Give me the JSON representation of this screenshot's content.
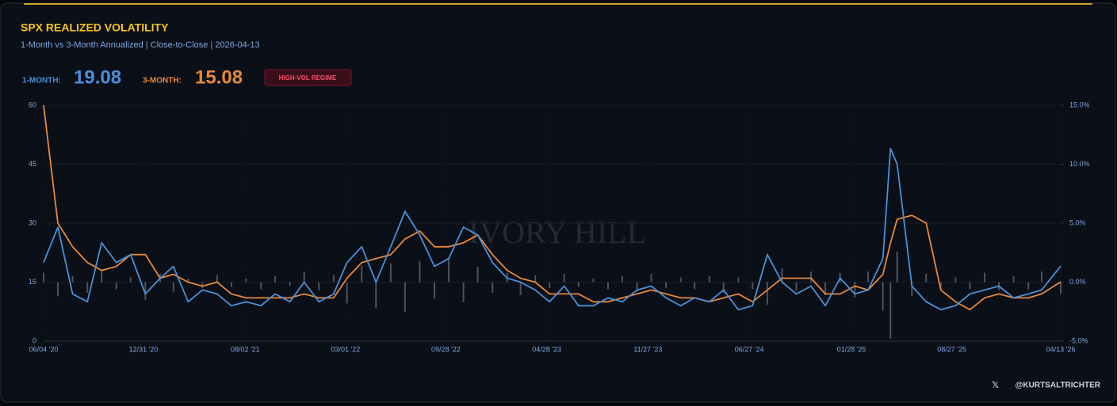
{
  "chart_data": {
    "type": "line",
    "title": "SPX REALIZED VOLATILITY",
    "subtitle": "1-Month vs 3-Month Annualized | Close-to-Close | 2026-04-13",
    "readouts": [
      {
        "label": "1-MONTH:",
        "value": 19.08,
        "color": "#4a90d9"
      },
      {
        "label": "3-MONTH:",
        "value": 15.08,
        "color": "#e8883a"
      }
    ],
    "badge": "HIGH-VOL REGIME",
    "watermark": "IVORY HILL",
    "handle": "@KURTSALTRICHTER",
    "x": [
      "2020-06-04",
      "2020-07-04",
      "2020-08-04",
      "2020-09-04",
      "2020-10-04",
      "2020-11-04",
      "2020-12-04",
      "2021-01-04",
      "2021-02-04",
      "2021-03-04",
      "2021-04-04",
      "2021-05-04",
      "2021-06-04",
      "2021-07-04",
      "2021-08-04",
      "2021-09-04",
      "2021-10-04",
      "2021-11-04",
      "2021-12-04",
      "2022-01-04",
      "2022-02-04",
      "2022-03-04",
      "2022-04-04",
      "2022-05-04",
      "2022-06-04",
      "2022-07-04",
      "2022-08-04",
      "2022-09-04",
      "2022-10-04",
      "2022-11-04",
      "2022-12-04",
      "2023-01-04",
      "2023-02-04",
      "2023-03-04",
      "2023-04-04",
      "2023-05-04",
      "2023-06-04",
      "2023-07-04",
      "2023-08-04",
      "2023-09-04",
      "2023-10-04",
      "2023-11-04",
      "2023-12-04",
      "2024-01-04",
      "2024-02-04",
      "2024-03-04",
      "2024-04-04",
      "2024-05-04",
      "2024-06-04",
      "2024-07-04",
      "2024-08-04",
      "2024-09-04",
      "2024-10-04",
      "2024-11-04",
      "2024-12-04",
      "2025-01-04",
      "2025-02-04",
      "2025-03-04",
      "2025-04-04",
      "2025-04-20",
      "2025-05-04",
      "2025-06-04",
      "2025-07-04",
      "2025-08-04",
      "2025-09-04",
      "2025-10-04",
      "2025-11-04",
      "2025-12-04",
      "2026-01-04",
      "2026-02-04",
      "2026-03-04",
      "2026-04-13"
    ],
    "series": [
      {
        "color": "#4a90d9",
        "values": [
          20,
          29,
          12,
          10,
          25,
          20,
          22,
          12,
          16,
          19,
          10,
          13,
          12,
          9,
          10,
          9,
          12,
          10,
          15,
          10,
          12,
          20,
          24,
          15,
          24,
          33,
          27,
          19,
          21,
          29,
          27,
          20,
          16,
          15,
          13,
          10,
          14,
          9,
          9,
          11,
          10,
          13,
          14,
          11,
          9,
          11,
          10,
          13,
          8,
          9,
          22,
          15,
          12,
          14,
          9,
          16,
          12,
          13,
          21,
          49,
          45,
          14,
          10,
          8,
          9,
          12,
          13,
          14,
          11,
          12,
          13,
          19.08
        ]
      },
      {
        "color": "#e8883a",
        "values": [
          60,
          30,
          24,
          20,
          18,
          19,
          22,
          22,
          16,
          17,
          15,
          14,
          15,
          12,
          11,
          11,
          11,
          11,
          12,
          11,
          11,
          16,
          20,
          21,
          22,
          26,
          28,
          24,
          24,
          25,
          27,
          22,
          18,
          16,
          15,
          12,
          12,
          12,
          10,
          10,
          11,
          12,
          13,
          12,
          11,
          11,
          10,
          11,
          12,
          10,
          13,
          16,
          16,
          16,
          12,
          12,
          14,
          13,
          17,
          25,
          31,
          32,
          30,
          13,
          10,
          8,
          11,
          12,
          11,
          11,
          12,
          15.08
        ]
      }
    ],
    "bars": {
      "axis": "y2",
      "color": "#6b6f78",
      "values": [
        0.8,
        -1.2,
        0.5,
        -0.9,
        1.1,
        -0.6,
        0.4,
        -1.5,
        0.7,
        -0.8,
        0.3,
        -0.5,
        0.6,
        -0.4,
        0.3,
        -0.6,
        0.5,
        -0.3,
        0.9,
        -0.7,
        0.6,
        -1.8,
        1.4,
        -2.2,
        1.6,
        -2.5,
        1.8,
        -1.4,
        2.1,
        -1.7,
        1.3,
        -0.9,
        0.8,
        -1.1,
        0.6,
        -0.5,
        0.7,
        -0.4,
        0.3,
        -0.6,
        0.5,
        -0.8,
        0.7,
        -0.5,
        0.4,
        -0.6,
        0.5,
        -0.9,
        0.4,
        -0.6,
        -1.9,
        1.2,
        -0.7,
        0.9,
        -1.1,
        0.8,
        -1.3,
        0.9,
        -2.4,
        -4.8,
        2.6,
        -1.2,
        0.7,
        -0.5,
        0.4,
        -0.6,
        0.8,
        -0.7,
        0.5,
        -0.6,
        0.9,
        -1.0
      ]
    },
    "xlim": [
      "2020-06-04",
      "2026-04-13"
    ],
    "xticks": [
      {
        "value": "2020-06-04",
        "label": "06/04 '20"
      },
      {
        "value": "2020-12-31",
        "label": "12/31 '20"
      },
      {
        "value": "2021-08-02",
        "label": "08/02 '21"
      },
      {
        "value": "2022-03-01",
        "label": "03/01 '22"
      },
      {
        "value": "2022-09-28",
        "label": "09/28 '22"
      },
      {
        "value": "2023-04-28",
        "label": "04/28 '23"
      },
      {
        "value": "2023-11-27",
        "label": "11/27 '23"
      },
      {
        "value": "2024-06-27",
        "label": "06/27 '24"
      },
      {
        "value": "2025-01-28",
        "label": "01/28 '25"
      },
      {
        "value": "2025-08-27",
        "label": "08/27 '25"
      },
      {
        "value": "2026-04-13",
        "label": "04/13 '26"
      }
    ],
    "ylim": [
      0,
      60
    ],
    "yticks": [
      0,
      15,
      30,
      45,
      60
    ],
    "y2lim": [
      -5,
      15
    ],
    "y2ticks": [
      {
        "value": -5,
        "label": "-5.0%"
      },
      {
        "value": 0,
        "label": "0.0%"
      },
      {
        "value": 5,
        "label": "5.0%"
      },
      {
        "value": 10,
        "label": "10.0%"
      },
      {
        "value": 15,
        "label": "15.0%"
      }
    ],
    "grid": true
  }
}
